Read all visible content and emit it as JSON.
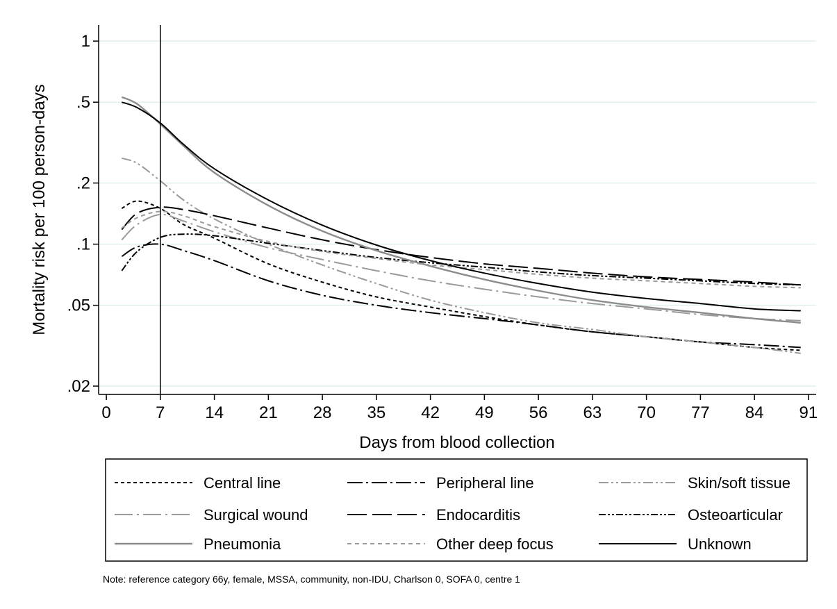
{
  "chart_data": {
    "type": "line",
    "xlabel": "Days from blood collection",
    "ylabel": "Mortality risk per 100 person-days",
    "xlim": [
      -1,
      92
    ],
    "ylim": [
      0.0182,
      1.2
    ],
    "yscale": "log",
    "xticks": [
      0,
      7,
      14,
      21,
      28,
      35,
      42,
      49,
      56,
      63,
      70,
      77,
      84,
      91
    ],
    "yticks": [
      {
        "value": 1,
        "label": "1"
      },
      {
        "value": 0.5,
        "label": ".5"
      },
      {
        "value": 0.2,
        "label": ".2"
      },
      {
        "value": 0.1,
        "label": ".1"
      },
      {
        "value": 0.05,
        "label": ".05"
      },
      {
        "value": 0.02,
        "label": ".02"
      }
    ],
    "grid": true,
    "reference_line_x": 7,
    "legend_position": "bottom",
    "series": [
      {
        "name": "Central line",
        "color": "#000000",
        "dash": "5,4",
        "width": 2,
        "x": [
          2,
          4,
          7,
          10,
          14,
          21,
          28,
          35,
          42,
          49,
          56,
          63,
          70,
          77,
          84,
          90
        ],
        "y": [
          0.15,
          0.163,
          0.15,
          0.125,
          0.107,
          0.08,
          0.065,
          0.055,
          0.049,
          0.044,
          0.04,
          0.037,
          0.035,
          0.033,
          0.031,
          0.03
        ]
      },
      {
        "name": "Peripheral line",
        "color": "#000000",
        "dash": "22,5,3,5",
        "width": 2,
        "x": [
          2,
          4,
          7,
          10,
          14,
          21,
          28,
          35,
          42,
          49,
          56,
          63,
          70,
          77,
          84,
          90
        ],
        "y": [
          0.087,
          0.097,
          0.1,
          0.093,
          0.083,
          0.066,
          0.056,
          0.05,
          0.046,
          0.043,
          0.04,
          0.037,
          0.035,
          0.033,
          0.032,
          0.031
        ]
      },
      {
        "name": "Skin/soft tissue",
        "color": "#9a9a9a",
        "dash": "14,4,3,4,3,4",
        "width": 2,
        "x": [
          2,
          4,
          7,
          10,
          14,
          21,
          28,
          35,
          42,
          49,
          56,
          63,
          70,
          77,
          84,
          90
        ],
        "y": [
          0.265,
          0.25,
          0.205,
          0.165,
          0.133,
          0.1,
          0.079,
          0.064,
          0.053,
          0.046,
          0.041,
          0.038,
          0.035,
          0.033,
          0.031,
          0.029
        ]
      },
      {
        "name": "Surgical wound",
        "color": "#9a9a9a",
        "dash": "26,6,3,6",
        "width": 2,
        "x": [
          2,
          4,
          7,
          10,
          14,
          21,
          28,
          35,
          42,
          49,
          56,
          63,
          70,
          77,
          84,
          90
        ],
        "y": [
          0.105,
          0.125,
          0.14,
          0.13,
          0.115,
          0.096,
          0.084,
          0.074,
          0.066,
          0.06,
          0.055,
          0.051,
          0.048,
          0.045,
          0.043,
          0.042
        ]
      },
      {
        "name": "Endocarditis",
        "color": "#000000",
        "dash": "28,8",
        "width": 2,
        "x": [
          2,
          4,
          7,
          10,
          14,
          21,
          28,
          35,
          42,
          49,
          56,
          63,
          70,
          77,
          84,
          90
        ],
        "y": [
          0.118,
          0.142,
          0.152,
          0.148,
          0.138,
          0.12,
          0.105,
          0.094,
          0.086,
          0.08,
          0.076,
          0.072,
          0.069,
          0.067,
          0.065,
          0.063
        ]
      },
      {
        "name": "Osteoarticular",
        "color": "#000000",
        "dash": "10,3,3,3,3,3",
        "width": 2,
        "x": [
          2,
          4,
          7,
          10,
          14,
          21,
          28,
          35,
          42,
          49,
          56,
          63,
          70,
          77,
          84,
          90
        ],
        "y": [
          0.074,
          0.092,
          0.108,
          0.112,
          0.11,
          0.101,
          0.093,
          0.086,
          0.081,
          0.077,
          0.073,
          0.07,
          0.068,
          0.066,
          0.064,
          0.063
        ]
      },
      {
        "name": "Pneumonia",
        "color": "#8c8c8c",
        "dash": "",
        "width": 2.4,
        "x": [
          2,
          4,
          7,
          10,
          14,
          21,
          28,
          35,
          42,
          49,
          56,
          63,
          70,
          77,
          84,
          90
        ],
        "y": [
          0.53,
          0.49,
          0.39,
          0.305,
          0.225,
          0.155,
          0.116,
          0.093,
          0.078,
          0.067,
          0.059,
          0.053,
          0.049,
          0.046,
          0.043,
          0.041
        ]
      },
      {
        "name": "Other deep focus",
        "color": "#9a9a9a",
        "dash": "6,5",
        "width": 2,
        "x": [
          2,
          4,
          7,
          10,
          14,
          21,
          28,
          35,
          42,
          49,
          56,
          63,
          70,
          77,
          84,
          90
        ],
        "y": [
          0.12,
          0.135,
          0.145,
          0.138,
          0.122,
          0.103,
          0.092,
          0.085,
          0.079,
          0.075,
          0.071,
          0.068,
          0.066,
          0.064,
          0.062,
          0.061
        ]
      },
      {
        "name": "Unknown",
        "color": "#000000",
        "dash": "",
        "width": 2,
        "x": [
          2,
          4,
          7,
          10,
          14,
          21,
          28,
          35,
          42,
          49,
          56,
          63,
          70,
          77,
          84,
          90
        ],
        "y": [
          0.5,
          0.47,
          0.395,
          0.31,
          0.235,
          0.165,
          0.124,
          0.099,
          0.083,
          0.072,
          0.064,
          0.058,
          0.054,
          0.051,
          0.048,
          0.047
        ]
      }
    ]
  },
  "note": "Note: reference category 66y, female, MSSA, community, non-IDU, Charlson 0, SOFA 0, centre 1"
}
